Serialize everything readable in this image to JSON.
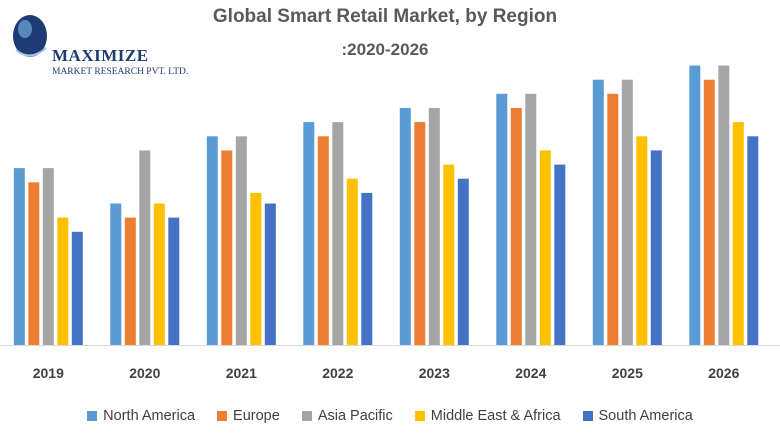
{
  "logo": {
    "name": "MAXIMIZE",
    "tagline": "MARKET RESEARCH PVT. LTD."
  },
  "chart_data": {
    "type": "bar",
    "title": "Global Smart Retail Market, by Region",
    "subtitle": ":2020-2026",
    "categories": [
      "2019",
      "2020",
      "2021",
      "2022",
      "2023",
      "2024",
      "2025",
      "2026"
    ],
    "legend_position": "bottom",
    "grid": false,
    "ylim": [
      0,
      8
    ],
    "series": [
      {
        "name": "North America",
        "color": "#5B9BD5",
        "values": [
          5.0,
          4.0,
          5.9,
          6.3,
          6.7,
          7.1,
          7.5,
          7.9
        ]
      },
      {
        "name": "Europe",
        "color": "#ED7D31",
        "values": [
          4.6,
          3.6,
          5.5,
          5.9,
          6.3,
          6.7,
          7.1,
          7.5
        ]
      },
      {
        "name": "Asia Pacific",
        "color": "#A5A5A5",
        "values": [
          5.0,
          5.5,
          5.9,
          6.3,
          6.7,
          7.1,
          7.5,
          7.9
        ]
      },
      {
        "name": "Middle East & Africa",
        "color": "#FFC000",
        "values": [
          3.6,
          4.0,
          4.3,
          4.7,
          5.1,
          5.5,
          5.9,
          6.3
        ]
      },
      {
        "name": "South America",
        "color": "#4472C4",
        "values": [
          3.2,
          3.6,
          4.0,
          4.3,
          4.7,
          5.1,
          5.5,
          5.9
        ]
      }
    ]
  }
}
